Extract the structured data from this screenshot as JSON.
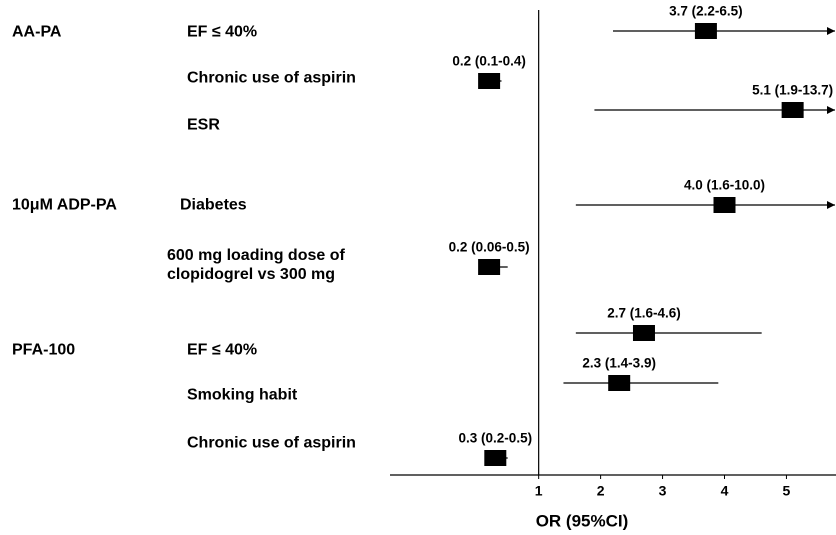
{
  "chart_data": {
    "type": "forest",
    "xlabel": "OR (95%CI)",
    "xlim": [
      -1.4,
      5.8
    ],
    "xticks": [
      1,
      2,
      3,
      4,
      5
    ],
    "reference": 1,
    "color": "#000000",
    "groups": [
      {
        "name": "AA-PA",
        "rows": [
          {
            "label": "EF ≤ 40%",
            "value": 3.7,
            "ci": [
              2.2,
              6.5
            ],
            "value_label": "3.7 (2.2-6.5)"
          },
          {
            "label": "Chronic use of aspirin",
            "value": 0.2,
            "ci": [
              0.1,
              0.4
            ],
            "value_label": "0.2 (0.1-0.4)"
          },
          {
            "label": "ESR",
            "value": 5.1,
            "ci": [
              1.9,
              13.7
            ],
            "value_label": "5.1 (1.9-13.7)"
          }
        ]
      },
      {
        "name": "10μM ADP-PA",
        "rows": [
          {
            "label": "Diabetes",
            "value": 4.0,
            "ci": [
              1.6,
              10.0
            ],
            "value_label": "4.0 (1.6-10.0)"
          },
          {
            "label": "600 mg loading dose of clopidogrel vs 300 mg",
            "value": 0.2,
            "ci": [
              0.06,
              0.5
            ],
            "value_label": "0.2 (0.06-0.5)"
          }
        ]
      },
      {
        "name": "PFA-100",
        "rows": [
          {
            "label": "EF ≤ 40%",
            "value": 2.7,
            "ci": [
              1.6,
              4.6
            ],
            "value_label": "2.7 (1.6-4.6)"
          },
          {
            "label": "Smoking habit",
            "value": 2.3,
            "ci": [
              1.4,
              3.9
            ],
            "value_label": "2.3 (1.4-3.9)"
          },
          {
            "label": "Chronic use of aspirin",
            "value": 0.3,
            "ci": [
              0.2,
              0.5
            ],
            "value_label": "0.3 (0.2-0.5)"
          }
        ]
      }
    ]
  }
}
